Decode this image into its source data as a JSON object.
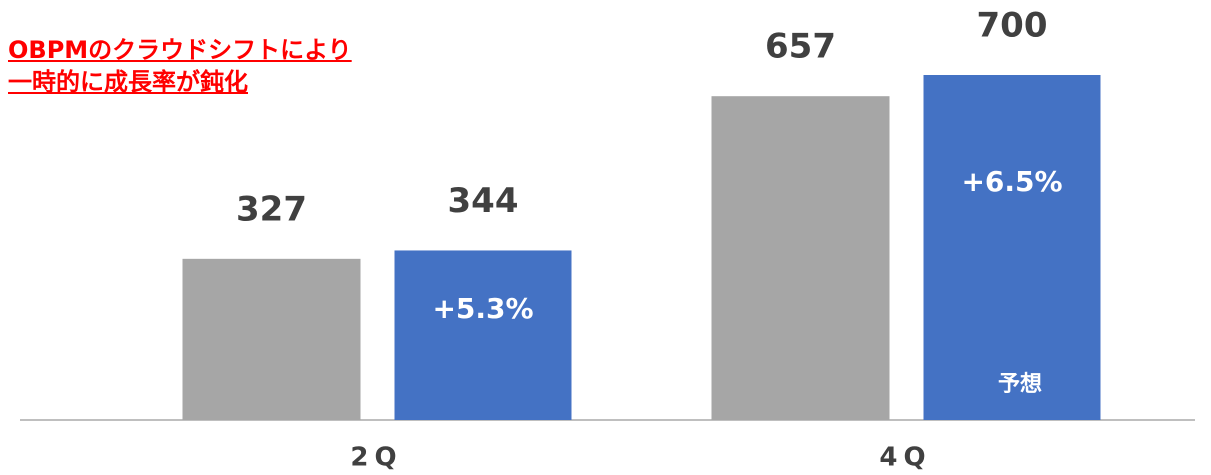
{
  "chart_data": {
    "type": "bar",
    "title": [
      "OBPMのクラウドシフトにより",
      "一時的に成長率が鈍化"
    ],
    "categories": [
      "2Q",
      "4Q"
    ],
    "series": [
      {
        "color": "#a6a6a6",
        "values": [
          327,
          657
        ]
      },
      {
        "color": "#4472c4",
        "values": [
          344,
          700
        ]
      }
    ],
    "annotations": [
      "+5.3%",
      "+6.5%",
      "予想"
    ],
    "ylim": [
      0,
      700
    ]
  }
}
